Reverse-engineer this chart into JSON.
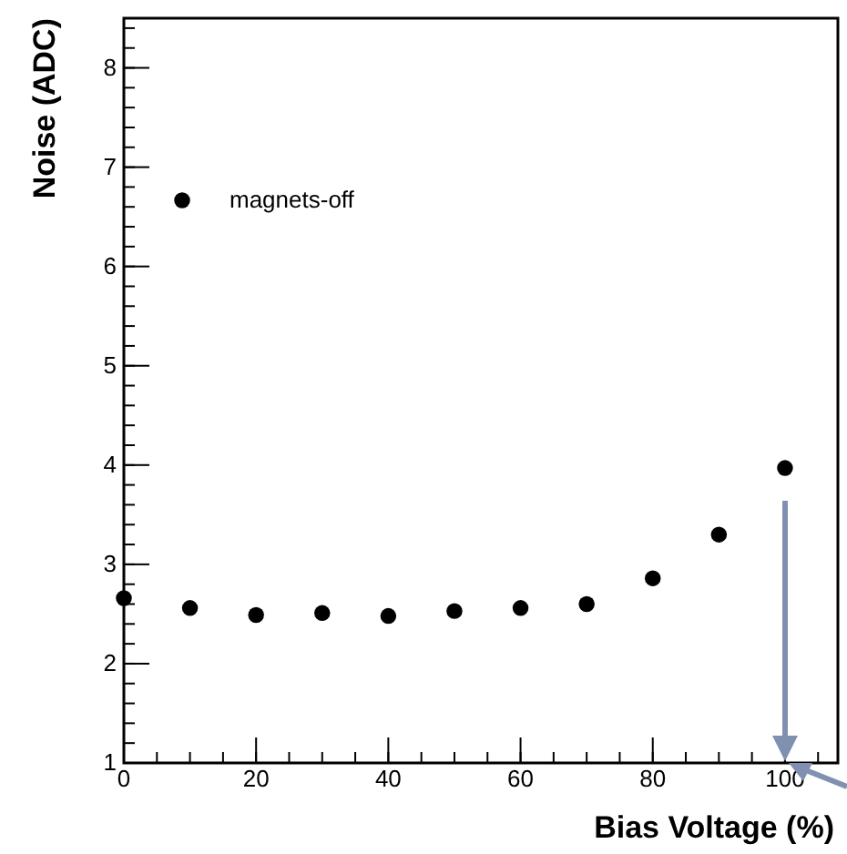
{
  "chart_data": {
    "type": "scatter",
    "xlabel": "Bias Voltage (%)",
    "ylabel": "Noise (ADC)",
    "x": [
      0,
      10,
      20,
      30,
      40,
      50,
      60,
      70,
      80,
      90,
      100
    ],
    "series": [
      {
        "name": "magnets-off",
        "color": "#000000",
        "values": [
          2.66,
          2.56,
          2.49,
          2.51,
          2.48,
          2.53,
          2.56,
          2.6,
          2.86,
          3.3,
          3.97
        ]
      }
    ],
    "xlim": [
      0,
      108
    ],
    "xticks": [
      0,
      20,
      40,
      60,
      80,
      100
    ],
    "ylim": [
      1,
      8.5
    ],
    "yticks": [
      1,
      2,
      3,
      4,
      5,
      6,
      7,
      8
    ],
    "marker": "circle",
    "legend": "top left",
    "grid": false
  }
}
